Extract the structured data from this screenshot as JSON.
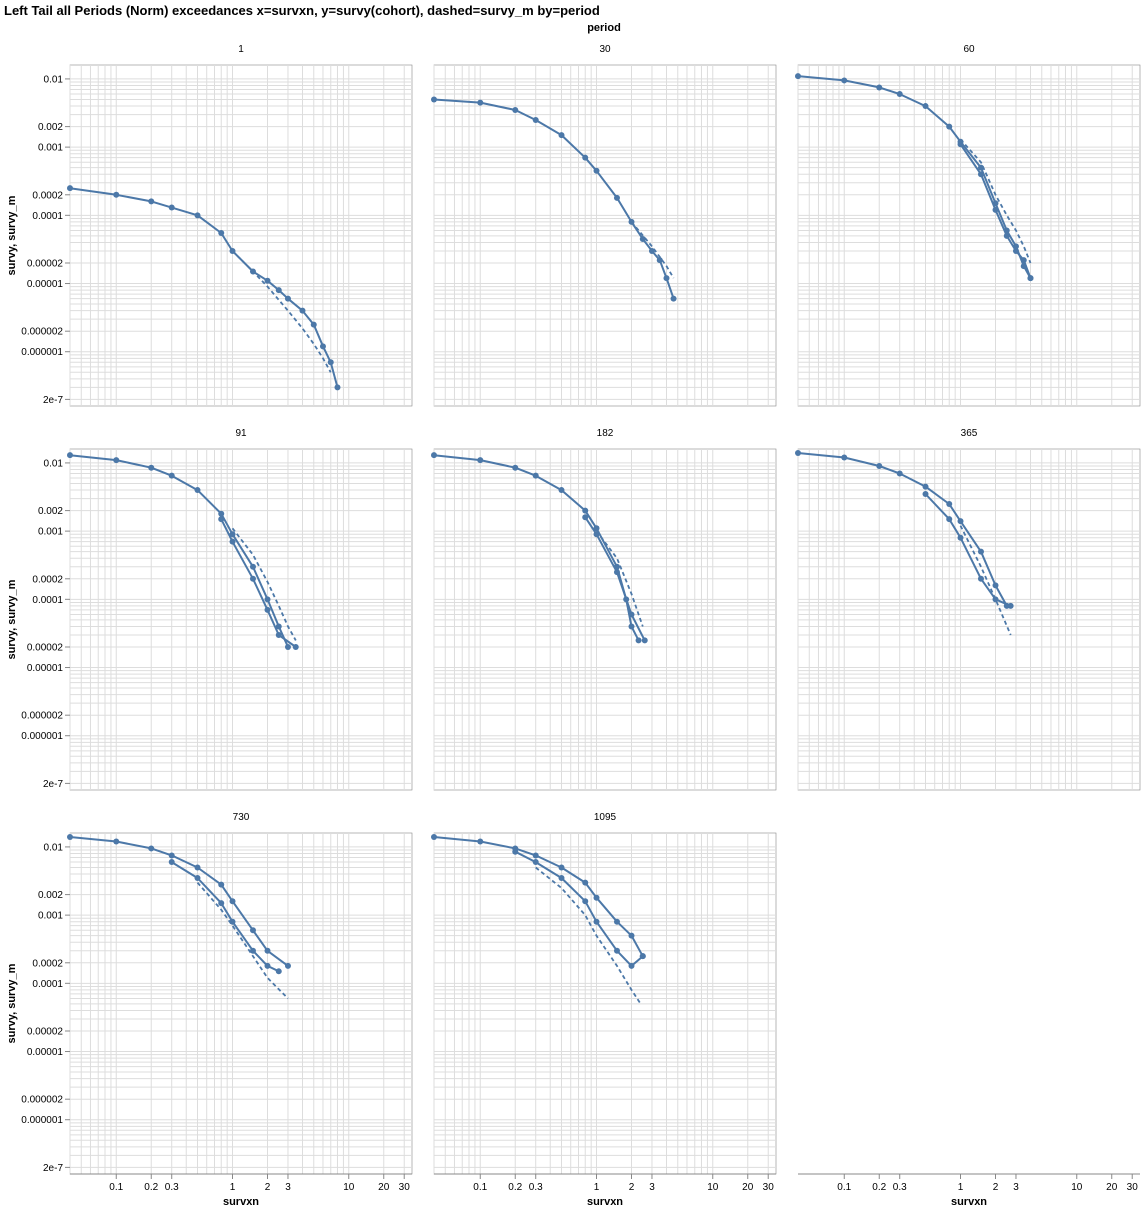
{
  "header": {
    "title": "Left Tail all Periods (Norm) exceedances x=survxn, y=survy(cohort), dashed=survy_m by=period",
    "facet_header": "period"
  },
  "axes": {
    "x_title": "survxn",
    "y_title": "survy, survy_m",
    "x_ticks": [
      {
        "value": 0.1,
        "label": "0.1"
      },
      {
        "value": 0.2,
        "label": "0.2"
      },
      {
        "value": 0.3,
        "label": "0.3"
      },
      {
        "value": 1,
        "label": "1"
      },
      {
        "value": 2,
        "label": "2"
      },
      {
        "value": 3,
        "label": "3"
      },
      {
        "value": 10,
        "label": "10"
      },
      {
        "value": 20,
        "label": "20"
      },
      {
        "value": 30,
        "label": "30"
      }
    ],
    "y_ticks": [
      {
        "value": 0.01,
        "label": "0.01"
      },
      {
        "value": 0.002,
        "label": "0.002"
      },
      {
        "value": 0.001,
        "label": "0.001"
      },
      {
        "value": 0.0002,
        "label": "0.0002"
      },
      {
        "value": 0.0001,
        "label": "0.0001"
      },
      {
        "value": 2e-05,
        "label": "0.00002"
      },
      {
        "value": 1e-05,
        "label": "0.00001"
      },
      {
        "value": 2e-06,
        "label": "0.000002"
      },
      {
        "value": 1e-06,
        "label": "0.000001"
      },
      {
        "value": 2e-07,
        "label": "2e-7"
      }
    ]
  },
  "colors": {
    "series": "#4c78a8",
    "grid": "#dddddd",
    "axis": "#888888"
  },
  "chart_data": {
    "type": "line",
    "x_scale": "log",
    "y_scale": "log",
    "xlim": [
      0.04,
      35
    ],
    "ylim": [
      1.6e-07,
      0.016
    ],
    "grid": true,
    "facet_field": "period",
    "marks": "solid lines with point markers = survy per cohort; dashed lines = survy_m",
    "facets": [
      {
        "period": "1",
        "series": [
          {
            "style": "solid",
            "x": [
              0.04,
              0.1,
              0.2,
              0.3,
              0.5,
              0.8,
              1.0,
              1.5,
              2.0,
              2.5,
              3.0,
              4.0,
              5.0,
              6.0,
              7.0,
              8.0
            ],
            "y": [
              0.00025,
              0.0002,
              0.00016,
              0.00013,
              0.0001,
              5.5e-05,
              3e-05,
              1.5e-05,
              1.1e-05,
              8e-06,
              6e-06,
              4e-06,
              2.5e-06,
              1.2e-06,
              7e-07,
              3e-07
            ]
          },
          {
            "style": "dashed",
            "x": [
              1.0,
              1.5,
              2.0,
              3.0,
              4.0,
              5.0,
              6.0,
              7.0
            ],
            "y": [
              3e-05,
              1.5e-05,
              9e-06,
              4e-06,
              2.2e-06,
              1.3e-06,
              8e-07,
              5e-07
            ]
          }
        ]
      },
      {
        "period": "30",
        "series": [
          {
            "style": "solid",
            "x": [
              0.04,
              0.1,
              0.2,
              0.3,
              0.5,
              0.8,
              1.0,
              1.5,
              2.0,
              2.5,
              3.0,
              3.5,
              4.0,
              4.6
            ],
            "y": [
              0.005,
              0.0045,
              0.0035,
              0.0025,
              0.0015,
              0.0007,
              0.00045,
              0.00018,
              8e-05,
              4.5e-05,
              3e-05,
              2.2e-05,
              1.2e-05,
              6e-06
            ]
          },
          {
            "style": "dashed",
            "x": [
              2.0,
              3.0,
              4.0,
              4.6
            ],
            "y": [
              8e-05,
              3.5e-05,
              1.8e-05,
              1.2e-05
            ]
          }
        ]
      },
      {
        "period": "60",
        "series": [
          {
            "style": "solid",
            "x": [
              0.04,
              0.1,
              0.2,
              0.3,
              0.5,
              0.8,
              1.0,
              1.5,
              2.0,
              2.5,
              3.0,
              3.5,
              4.0
            ],
            "y": [
              0.011,
              0.0095,
              0.0075,
              0.006,
              0.004,
              0.002,
              0.0012,
              0.0005,
              0.00015,
              6e-05,
              3.5e-05,
              1.8e-05,
              1.2e-05
            ]
          },
          {
            "style": "solid",
            "x": [
              1.0,
              1.5,
              2.0,
              2.5,
              3.0,
              3.5,
              4.0
            ],
            "y": [
              0.0011,
              0.0004,
              0.00012,
              5e-05,
              3e-05,
              2.2e-05,
              1.2e-05
            ]
          },
          {
            "style": "dashed",
            "x": [
              1.0,
              1.5,
              2.0,
              2.5,
              3.0,
              3.5,
              4.0
            ],
            "y": [
              0.0013,
              0.0006,
              0.0002,
              0.0001,
              6e-05,
              3.5e-05,
              2e-05
            ]
          }
        ]
      },
      {
        "period": "91",
        "series": [
          {
            "style": "solid",
            "x": [
              0.04,
              0.1,
              0.2,
              0.3,
              0.5,
              0.8,
              1.0,
              1.5,
              2.0,
              2.5,
              3.0
            ],
            "y": [
              0.013,
              0.011,
              0.0085,
              0.0065,
              0.004,
              0.0018,
              0.0009,
              0.0003,
              0.0001,
              4e-05,
              2e-05
            ]
          },
          {
            "style": "solid",
            "x": [
              0.8,
              1.0,
              1.5,
              2.0,
              2.5,
              3.5
            ],
            "y": [
              0.0015,
              0.0007,
              0.0002,
              7e-05,
              3e-05,
              2e-05
            ]
          },
          {
            "style": "dashed",
            "x": [
              1.0,
              1.5,
              2.0,
              2.5,
              3.0,
              3.5
            ],
            "y": [
              0.0011,
              0.00045,
              0.00018,
              8e-05,
              4e-05,
              2.5e-05
            ]
          }
        ]
      },
      {
        "period": "182",
        "series": [
          {
            "style": "solid",
            "x": [
              0.04,
              0.1,
              0.2,
              0.3,
              0.5,
              0.8,
              1.0,
              1.5,
              1.8,
              2.0,
              2.3
            ],
            "y": [
              0.013,
              0.011,
              0.0085,
              0.0065,
              0.004,
              0.002,
              0.0011,
              0.0003,
              0.0001,
              4e-05,
              2.5e-05
            ]
          },
          {
            "style": "solid",
            "x": [
              0.8,
              1.0,
              1.5,
              2.0,
              2.6
            ],
            "y": [
              0.0016,
              0.0009,
              0.00025,
              6e-05,
              2.5e-05
            ]
          },
          {
            "style": "dashed",
            "x": [
              1.0,
              1.5,
              2.0,
              2.5
            ],
            "y": [
              0.001,
              0.0004,
              0.00012,
              4e-05
            ]
          }
        ]
      },
      {
        "period": "365",
        "series": [
          {
            "style": "solid",
            "x": [
              0.04,
              0.1,
              0.2,
              0.3,
              0.5,
              0.8,
              1.0,
              1.5,
              2.0,
              2.5
            ],
            "y": [
              0.014,
              0.012,
              0.009,
              0.007,
              0.0045,
              0.0025,
              0.0014,
              0.0005,
              0.00016,
              8e-05
            ]
          },
          {
            "style": "solid",
            "x": [
              0.5,
              0.8,
              1.0,
              1.5,
              2.0,
              2.7
            ],
            "y": [
              0.0035,
              0.0015,
              0.0008,
              0.0002,
              0.0001,
              8e-05
            ]
          },
          {
            "style": "dashed",
            "x": [
              1.0,
              1.5,
              2.0,
              2.7
            ],
            "y": [
              0.0012,
              0.0003,
              0.0001,
              3e-05
            ]
          }
        ]
      },
      {
        "period": "730",
        "series": [
          {
            "style": "solid",
            "x": [
              0.04,
              0.1,
              0.2,
              0.3,
              0.5,
              0.8,
              1.0,
              1.5,
              2.0,
              3.0
            ],
            "y": [
              0.014,
              0.012,
              0.0095,
              0.0075,
              0.005,
              0.0028,
              0.0016,
              0.0006,
              0.0003,
              0.00018
            ]
          },
          {
            "style": "solid",
            "x": [
              0.3,
              0.5,
              0.8,
              1.0,
              1.5,
              2.0,
              2.5
            ],
            "y": [
              0.006,
              0.0035,
              0.0015,
              0.0008,
              0.0003,
              0.00018,
              0.00015
            ]
          },
          {
            "style": "dashed",
            "x": [
              0.5,
              0.8,
              1.0,
              1.5,
              2.0,
              3.0
            ],
            "y": [
              0.003,
              0.0012,
              0.0007,
              0.00025,
              0.00012,
              6e-05
            ]
          }
        ]
      },
      {
        "period": "1095",
        "series": [
          {
            "style": "solid",
            "x": [
              0.04,
              0.1,
              0.2,
              0.3,
              0.5,
              0.8,
              1.0,
              1.5,
              2.0,
              2.5
            ],
            "y": [
              0.014,
              0.012,
              0.0095,
              0.0075,
              0.005,
              0.003,
              0.0018,
              0.0008,
              0.0005,
              0.00025
            ]
          },
          {
            "style": "solid",
            "x": [
              0.2,
              0.3,
              0.5,
              0.8,
              1.0,
              1.5,
              2.0,
              2.5
            ],
            "y": [
              0.0085,
              0.006,
              0.0035,
              0.0016,
              0.0008,
              0.0003,
              0.00018,
              0.00025
            ]
          },
          {
            "style": "dashed",
            "x": [
              0.3,
              0.5,
              0.8,
              1.0,
              1.5,
              2.0,
              2.4
            ],
            "y": [
              0.005,
              0.0025,
              0.001,
              0.0005,
              0.00018,
              8e-05,
              5e-05
            ]
          }
        ]
      }
    ]
  }
}
